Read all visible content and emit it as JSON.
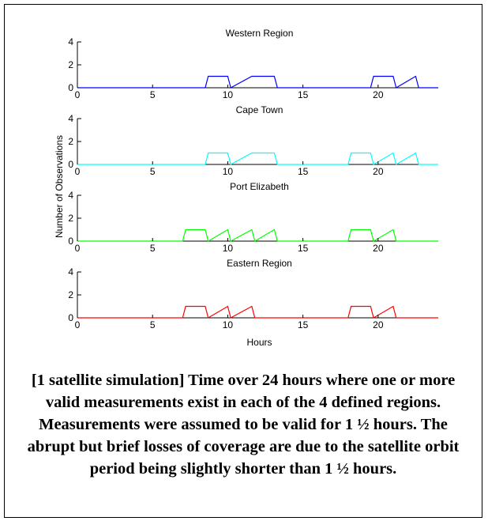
{
  "chart_data": {
    "type": "line",
    "shared_xlabel": "Hours",
    "shared_ylabel": "Number      of Observations",
    "xlim": [
      0,
      24
    ],
    "ylim": [
      0,
      4
    ],
    "xticks": [
      0,
      5,
      10,
      15,
      20
    ],
    "yticks": [
      0,
      2,
      4
    ],
    "panels": [
      {
        "title": "Western Region",
        "color": "#0000ff",
        "x": [
          0,
          8.5,
          8.7,
          10.0,
          10.2,
          11.6,
          11.8,
          13.1,
          13.3,
          19.5,
          19.7,
          21.0,
          21.2,
          22.5,
          22.7,
          24
        ],
        "y": [
          0,
          0,
          1,
          1,
          0,
          1,
          1,
          1,
          0,
          0,
          1,
          1,
          0,
          1,
          0,
          0
        ]
      },
      {
        "title": "Cape Town",
        "color": "#00ffff",
        "x": [
          0,
          8.5,
          8.7,
          10.0,
          10.2,
          11.6,
          11.8,
          13.1,
          13.3,
          18.0,
          18.2,
          19.5,
          19.7,
          21.0,
          21.2,
          22.5,
          22.7,
          24
        ],
        "y": [
          0,
          0,
          1,
          1,
          0,
          1,
          1,
          1,
          0,
          0,
          1,
          1,
          0,
          1,
          0,
          1,
          0,
          0
        ]
      },
      {
        "title": "Port Elizabeth",
        "color": "#00ff00",
        "x": [
          0,
          7.0,
          7.2,
          8.5,
          8.7,
          10.0,
          10.2,
          11.6,
          11.8,
          13.1,
          13.3,
          18.0,
          18.2,
          19.5,
          19.7,
          21.0,
          21.2,
          24
        ],
        "y": [
          0,
          0,
          1,
          1,
          0,
          1,
          0,
          1,
          0,
          1,
          0,
          0,
          1,
          1,
          0,
          1,
          0,
          0
        ]
      },
      {
        "title": "Eastern Region",
        "color": "#ff0000",
        "x": [
          0,
          7.0,
          7.2,
          8.5,
          8.7,
          10.0,
          10.2,
          11.6,
          11.8,
          18.0,
          18.2,
          19.5,
          19.7,
          21.0,
          21.2,
          24
        ],
        "y": [
          0,
          0,
          1,
          1,
          0,
          1,
          0,
          1,
          0,
          0,
          1,
          1,
          0,
          1,
          0,
          0
        ]
      }
    ],
    "coverage_intervals": [
      [
        [
          8.5,
          13.3
        ],
        [
          19.5,
          22.7
        ]
      ],
      [
        [
          8.5,
          13.3
        ],
        [
          18.0,
          22.7
        ]
      ],
      [
        [
          7.0,
          13.3
        ],
        [
          18.0,
          21.2
        ]
      ],
      [
        [
          7.0,
          11.8
        ],
        [
          18.0,
          21.2
        ]
      ]
    ],
    "gaps": [
      [
        10.1,
        11.7,
        20.1,
        21.1
      ],
      [
        10.1,
        11.7,
        19.6,
        21.1
      ],
      [
        8.6,
        10.1,
        11.7,
        19.6
      ],
      [
        8.6,
        10.1,
        19.6
      ]
    ]
  },
  "caption": "[1 satellite simulation] Time over 24 hours where one or more valid measurements exist in each of the 4 defined regions. Measurements were assumed to be valid for 1 ½ hours.  The abrupt but brief losses of  coverage are due to the satellite orbit period being slightly shorter than 1 ½ hours."
}
